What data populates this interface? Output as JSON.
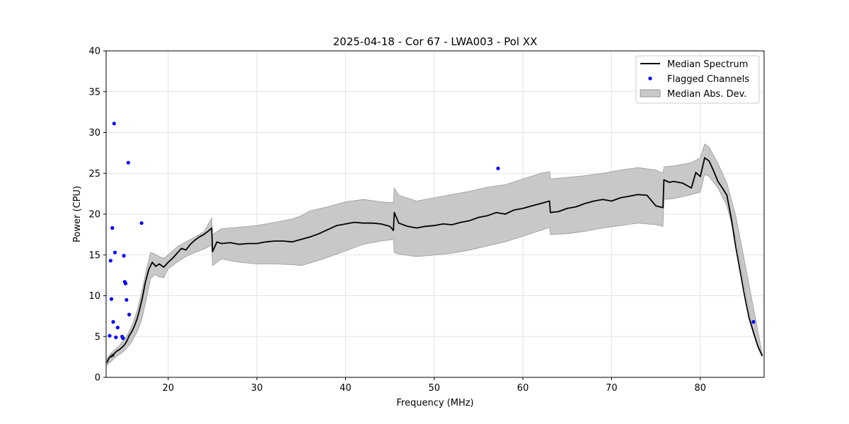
{
  "chart_data": {
    "type": "line",
    "title": "2025-04-18 - Cor 67 - LWA003 - Pol XX",
    "xlabel": "Frequency (MHz)",
    "ylabel": "Power (CPU)",
    "xlim": [
      13.0,
      87.2
    ],
    "ylim": [
      0,
      40
    ],
    "xticks": [
      20,
      30,
      40,
      50,
      60,
      70,
      80
    ],
    "yticks": [
      0,
      5,
      10,
      15,
      20,
      25,
      30,
      35,
      40
    ],
    "grid": true,
    "legend": {
      "position": "top-right",
      "entries": [
        "Median Spectrum",
        "Flagged Channels",
        "Median Abs. Dev."
      ]
    },
    "series": [
      {
        "name": "Median Spectrum",
        "kind": "line",
        "color": "#000000",
        "x": [
          13.1,
          13.3,
          13.5,
          13.6,
          13.7,
          13.8,
          13.9,
          14.0,
          14.2,
          14.5,
          14.8,
          15.0,
          15.2,
          15.4,
          15.6,
          15.9,
          16.2,
          16.5,
          16.8,
          17.1,
          17.4,
          17.8,
          18.2,
          18.6,
          19.0,
          19.5,
          20.0,
          20.5,
          21.0,
          21.5,
          22.0,
          22.5,
          23.0,
          23.5,
          24.0,
          24.5,
          24.9,
          25.0,
          25.5,
          26.0,
          27.0,
          28.0,
          29.0,
          30.0,
          31.0,
          32.0,
          33.0,
          34.0,
          35.0,
          36.0,
          37.0,
          38.0,
          39.0,
          40.0,
          41.0,
          42.0,
          43.0,
          44.0,
          45.0,
          45.4,
          45.5,
          46.0,
          47.0,
          48.0,
          49.0,
          50.0,
          51.0,
          52.0,
          53.0,
          54.0,
          55.0,
          56.0,
          57.0,
          58.0,
          59.0,
          60.0,
          61.0,
          62.0,
          63.0,
          63.1,
          64.0,
          65.0,
          66.0,
          67.0,
          68.0,
          69.0,
          70.0,
          71.0,
          72.0,
          73.0,
          74.0,
          75.0,
          75.8,
          75.9,
          76.5,
          77.0,
          78.0,
          79.0,
          79.5,
          80.0,
          80.5,
          81.0,
          81.5,
          82.0,
          82.5,
          83.0,
          83.5,
          84.0,
          84.5,
          85.0,
          85.5,
          86.0,
          86.5,
          87.0
        ],
        "y": [
          1.8,
          2.3,
          2.6,
          2.5,
          2.8,
          2.6,
          2.9,
          3.0,
          3.2,
          3.4,
          3.7,
          3.9,
          4.2,
          4.6,
          5.1,
          5.6,
          6.3,
          7.2,
          8.4,
          9.8,
          11.5,
          13.2,
          14.1,
          13.6,
          13.9,
          13.5,
          14.1,
          14.6,
          15.2,
          15.8,
          15.6,
          16.3,
          16.8,
          17.2,
          17.5,
          17.9,
          18.3,
          15.4,
          16.6,
          16.4,
          16.5,
          16.3,
          16.4,
          16.4,
          16.6,
          16.7,
          16.7,
          16.6,
          16.9,
          17.2,
          17.6,
          18.1,
          18.6,
          18.8,
          19.0,
          18.9,
          18.9,
          18.8,
          18.5,
          18.0,
          20.2,
          18.9,
          18.5,
          18.3,
          18.5,
          18.6,
          18.8,
          18.7,
          19.0,
          19.2,
          19.6,
          19.8,
          20.2,
          20.0,
          20.5,
          20.7,
          21.0,
          21.3,
          21.6,
          20.2,
          20.3,
          20.7,
          20.9,
          21.3,
          21.6,
          21.8,
          21.6,
          22.0,
          22.2,
          22.4,
          22.3,
          21.0,
          20.8,
          24.2,
          23.9,
          24.0,
          23.8,
          23.2,
          25.1,
          24.6,
          26.9,
          26.5,
          25.3,
          24.0,
          23.2,
          22.3,
          19.5,
          16.0,
          13.0,
          10.0,
          7.3,
          5.5,
          3.8,
          2.6
        ]
      },
      {
        "name": "Flagged Channels",
        "kind": "scatter",
        "color": "#0000ff",
        "x": [
          13.4,
          13.5,
          13.6,
          13.7,
          13.8,
          13.9,
          14.0,
          14.1,
          14.3,
          14.8,
          14.9,
          15.0,
          15.1,
          15.2,
          15.3,
          15.5,
          15.6,
          17.0,
          57.2,
          86.0
        ],
        "y": [
          5.1,
          14.3,
          9.6,
          18.3,
          6.8,
          31.1,
          15.3,
          4.9,
          6.1,
          5.0,
          4.8,
          14.9,
          11.7,
          11.5,
          9.5,
          26.3,
          7.7,
          18.9,
          25.6,
          6.8
        ]
      },
      {
        "name": "Median Abs. Dev.",
        "kind": "band",
        "color": "#c8c8c8",
        "x": [
          13.1,
          13.5,
          14.0,
          14.5,
          15.0,
          15.5,
          16.0,
          16.5,
          17.0,
          17.5,
          18.0,
          18.5,
          19.0,
          19.5,
          20.0,
          21.0,
          22.0,
          23.0,
          24.0,
          24.9,
          25.0,
          26.0,
          28.0,
          30.0,
          32.0,
          34.0,
          35.0,
          36.0,
          38.0,
          40.0,
          42.0,
          44.0,
          45.4,
          45.5,
          46.0,
          48.0,
          50.0,
          52.0,
          54.0,
          56.0,
          58.0,
          60.0,
          62.0,
          63.0,
          63.1,
          65.0,
          67.0,
          69.0,
          71.0,
          73.0,
          75.0,
          75.8,
          75.9,
          77.0,
          79.0,
          80.0,
          80.5,
          81.0,
          82.0,
          83.0,
          84.0,
          85.0,
          86.0,
          87.0
        ],
        "y_low": [
          1.5,
          1.9,
          2.4,
          2.8,
          3.2,
          3.8,
          4.6,
          5.6,
          7.0,
          9.4,
          12.1,
          12.6,
          12.3,
          12.2,
          13.3,
          14.1,
          14.8,
          15.3,
          15.7,
          16.2,
          13.7,
          14.5,
          14.1,
          13.9,
          13.9,
          13.8,
          13.7,
          14.0,
          14.7,
          15.5,
          16.3,
          16.7,
          16.9,
          15.3,
          15.1,
          14.8,
          15.0,
          15.2,
          15.6,
          16.1,
          16.6,
          17.3,
          18.0,
          18.4,
          17.5,
          17.6,
          17.9,
          18.3,
          18.6,
          18.9,
          18.7,
          18.5,
          21.8,
          21.9,
          22.4,
          22.7,
          24.9,
          24.6,
          23.2,
          21.0,
          17.0,
          11.0,
          5.3,
          2.6
        ],
        "y_high": [
          2.3,
          2.9,
          3.4,
          3.9,
          4.6,
          5.4,
          6.6,
          8.2,
          10.4,
          13.0,
          15.3,
          15.1,
          14.8,
          14.6,
          15.0,
          16.0,
          16.6,
          17.2,
          17.8,
          19.5,
          17.5,
          18.2,
          18.4,
          18.6,
          19.0,
          19.4,
          19.8,
          20.4,
          20.9,
          21.5,
          21.8,
          21.5,
          21.4,
          23.2,
          22.3,
          21.6,
          22.0,
          22.4,
          22.8,
          23.3,
          23.6,
          24.3,
          25.0,
          25.2,
          24.3,
          24.5,
          24.7,
          25.0,
          25.4,
          25.7,
          25.4,
          25.0,
          25.8,
          25.9,
          26.3,
          26.9,
          28.6,
          28.2,
          26.2,
          23.8,
          19.8,
          14.2,
          8.5,
          2.8
        ]
      }
    ]
  }
}
